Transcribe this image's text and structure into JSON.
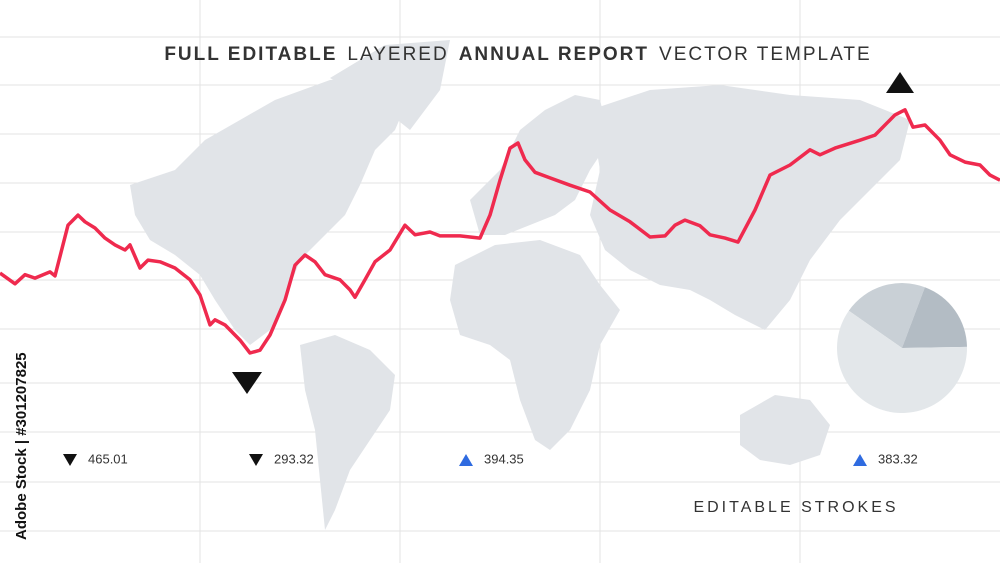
{
  "title_parts": [
    {
      "text": "FULL EDITABLE",
      "bold": true
    },
    {
      "text": "LAYERED",
      "bold": false
    },
    {
      "text": "ANNUAL REPORT",
      "bold": true
    },
    {
      "text": "VECTOR TEMPLATE",
      "bold": false
    }
  ],
  "chart_data": [
    {
      "type": "line",
      "x": [
        0,
        1.5,
        2.5,
        3.5,
        5,
        5.5,
        6.8,
        7.8,
        8.5,
        9.5,
        10.5,
        11.5,
        12.5,
        13,
        14,
        14.8,
        16,
        17.5,
        19,
        20,
        21,
        21.5,
        22.5,
        24,
        25,
        26,
        27,
        28.5,
        29.5,
        30.5,
        31.5,
        32.5,
        34,
        35,
        35.5,
        36.5,
        37.5,
        39,
        40.5,
        41.5,
        43,
        44,
        46,
        48,
        49,
        50,
        51,
        51.8,
        52.5,
        53.5,
        55,
        57,
        59,
        61,
        63,
        65,
        66.5,
        67.5,
        68.5,
        70,
        71,
        72.5,
        73.8,
        75.5,
        77,
        79,
        81,
        82,
        83.5,
        86,
        87.5,
        89.5,
        90.5,
        91.3,
        92.5,
        94,
        95,
        96.5,
        98,
        99,
        100
      ],
      "xlim": [
        0,
        100
      ],
      "ylim": [
        0,
        100
      ],
      "series": [
        {
          "color": "#ef2a4e",
          "values": [
            51.5,
            49.6,
            51.2,
            50.6,
            51.7,
            51.0,
            60.0,
            61.8,
            60.6,
            59.5,
            57.7,
            56.5,
            55.6,
            56.5,
            52.4,
            53.8,
            53.5,
            52.4,
            50.3,
            47.6,
            42.3,
            43.2,
            42.3,
            39.6,
            37.3,
            37.8,
            40.5,
            46.7,
            52.9,
            54.7,
            53.5,
            51.2,
            50.3,
            48.5,
            47.2,
            50.3,
            53.5,
            55.6,
            60.0,
            58.3,
            58.8,
            58.1,
            58.1,
            57.7,
            61.8,
            68.0,
            73.7,
            74.6,
            71.6,
            69.4,
            68.4,
            67.1,
            65.9,
            62.7,
            60.6,
            57.9,
            58.1,
            60.0,
            60.9,
            59.9,
            58.3,
            57.7,
            57.0,
            62.7,
            68.9,
            70.7,
            73.4,
            72.5,
            73.7,
            75.1,
            76.0,
            79.6,
            80.5,
            77.4,
            77.8,
            75.1,
            72.5,
            71.2,
            70.7,
            68.9,
            68.0
          ]
        }
      ]
    },
    {
      "type": "pie",
      "values": [
        21,
        19,
        60
      ],
      "colors": [
        "#c9d0d6",
        "#b3bcc4",
        "#e3e7ea"
      ]
    }
  ],
  "stats": [
    {
      "value": 465.01,
      "direction": "down"
    },
    {
      "value": 293.32,
      "direction": "down"
    },
    {
      "value": 394.35,
      "direction": "up"
    },
    {
      "value": 383.32,
      "direction": "up"
    }
  ],
  "annotation": "EDITABLE STROKES",
  "watermark": "Adobe Stock | #301207825"
}
